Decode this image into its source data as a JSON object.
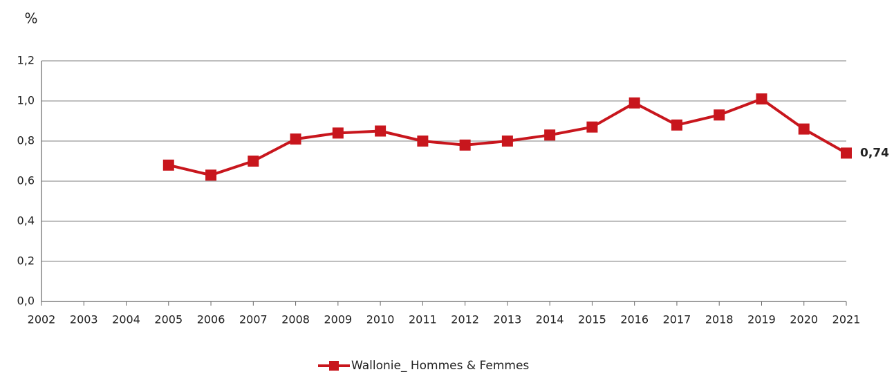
{
  "chart_data": {
    "type": "line",
    "y_label": "%",
    "categories": [
      "2002",
      "2003",
      "2004",
      "2005",
      "2006",
      "2007",
      "2008",
      "2009",
      "2010",
      "2011",
      "2012",
      "2013",
      "2014",
      "2015",
      "2016",
      "2017",
      "2018",
      "2019",
      "2020",
      "2021"
    ],
    "series": [
      {
        "name": "Wallonie_ Hommes & Femmes",
        "color": "#c8161d",
        "values": [
          null,
          null,
          null,
          0.68,
          0.63,
          0.7,
          0.81,
          0.84,
          0.85,
          0.8,
          0.78,
          0.8,
          0.83,
          0.87,
          0.99,
          0.88,
          0.93,
          1.01,
          0.86,
          0.74
        ],
        "value_labels": [
          null,
          null,
          null,
          null,
          null,
          null,
          null,
          null,
          null,
          null,
          null,
          null,
          null,
          null,
          null,
          null,
          null,
          null,
          null,
          "0,74"
        ]
      }
    ],
    "ylim": [
      0,
      1.2
    ],
    "yticks": [
      {
        "value": 0,
        "label": "0,0"
      },
      {
        "value": 0.2,
        "label": "0,2"
      },
      {
        "value": 0.4,
        "label": "0,4"
      },
      {
        "value": 0.6,
        "label": "0,6"
      },
      {
        "value": 0.8,
        "label": "0,8"
      },
      {
        "value": 1.0,
        "label": "1,0"
      },
      {
        "value": 1.2,
        "label": "1,2"
      }
    ],
    "grid": true,
    "legend": "bottom"
  }
}
